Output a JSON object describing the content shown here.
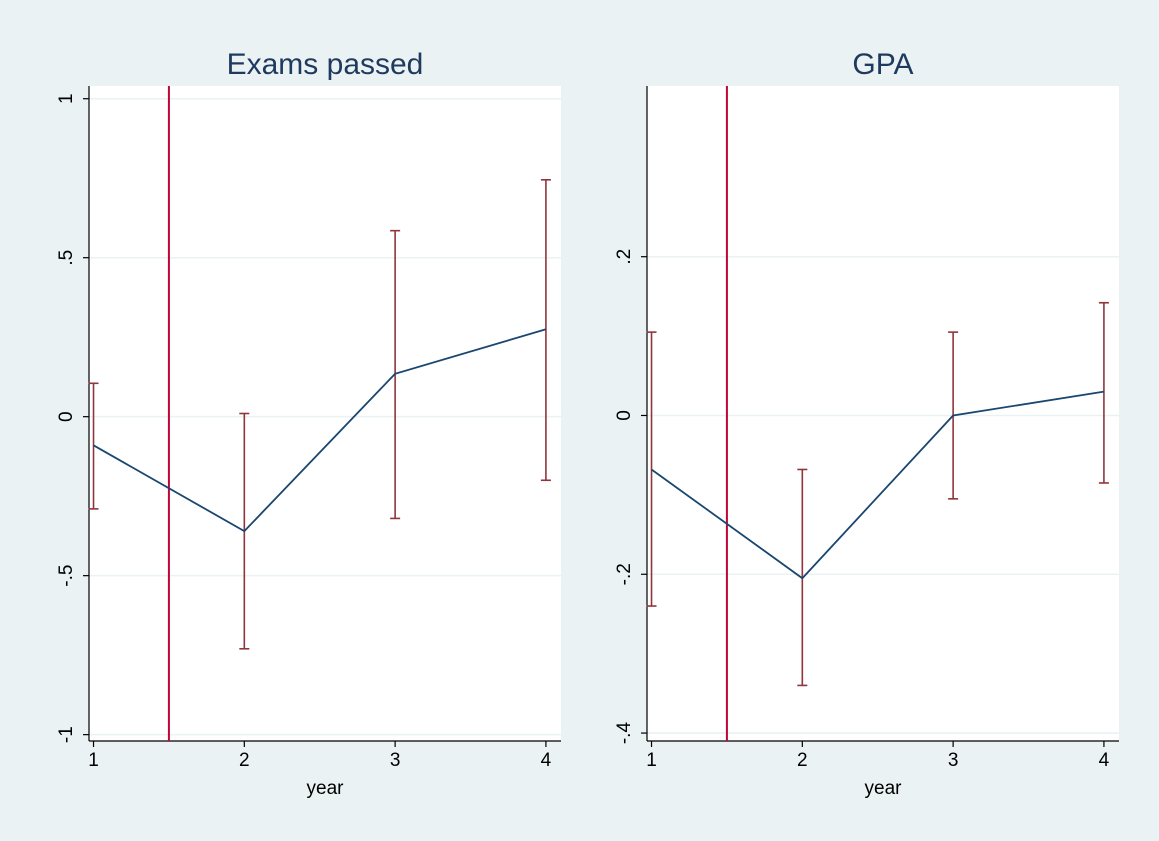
{
  "colors": {
    "outer_background": "#eaf2f3",
    "plot_background": "#ffffff",
    "gridline": "#eaf2f3",
    "line": "#1a476f",
    "error_bar": "#90353b",
    "reference_line": "#c10534",
    "title_text": "#1e3a5f",
    "axis_text": "#000000"
  },
  "chart_data": [
    {
      "type": "line",
      "title": "Exams passed",
      "xlabel": "year",
      "ylabel": "",
      "x": [
        1,
        2,
        3,
        4
      ],
      "xticks": [
        1,
        2,
        3,
        4
      ],
      "xtick_labels": [
        "1",
        "2",
        "3",
        "4"
      ],
      "xlim": [
        0.97,
        4.1
      ],
      "ylim": [
        -1.02,
        1.04
      ],
      "yticks": [
        -1,
        -0.5,
        0,
        0.5,
        1
      ],
      "ytick_labels": [
        "-1",
        "-.5",
        "0",
        ".5",
        "1"
      ],
      "grid": true,
      "reference_line_x": 1.5,
      "series": [
        {
          "values": [
            -0.09,
            -0.36,
            0.135,
            0.275
          ],
          "ci_lower": [
            -0.29,
            -0.73,
            -0.32,
            -0.2
          ],
          "ci_upper": [
            0.105,
            0.01,
            0.585,
            0.745
          ]
        }
      ]
    },
    {
      "type": "line",
      "title": "GPA",
      "xlabel": "year",
      "ylabel": "",
      "x": [
        1,
        2,
        3,
        4
      ],
      "xticks": [
        1,
        2,
        3,
        4
      ],
      "xtick_labels": [
        "1",
        "2",
        "3",
        "4"
      ],
      "xlim": [
        0.97,
        4.1
      ],
      "ylim": [
        -0.41,
        0.415
      ],
      "yticks": [
        -0.4,
        -0.2,
        0,
        0.2
      ],
      "ytick_labels": [
        "-.4",
        "-.2",
        "0",
        ".2"
      ],
      "grid": true,
      "reference_line_x": 1.5,
      "series": [
        {
          "values": [
            -0.068,
            -0.205,
            0.0,
            0.03
          ],
          "ci_lower": [
            -0.24,
            -0.34,
            -0.105,
            -0.085
          ],
          "ci_upper": [
            0.105,
            -0.068,
            0.105,
            0.142
          ]
        }
      ]
    }
  ]
}
